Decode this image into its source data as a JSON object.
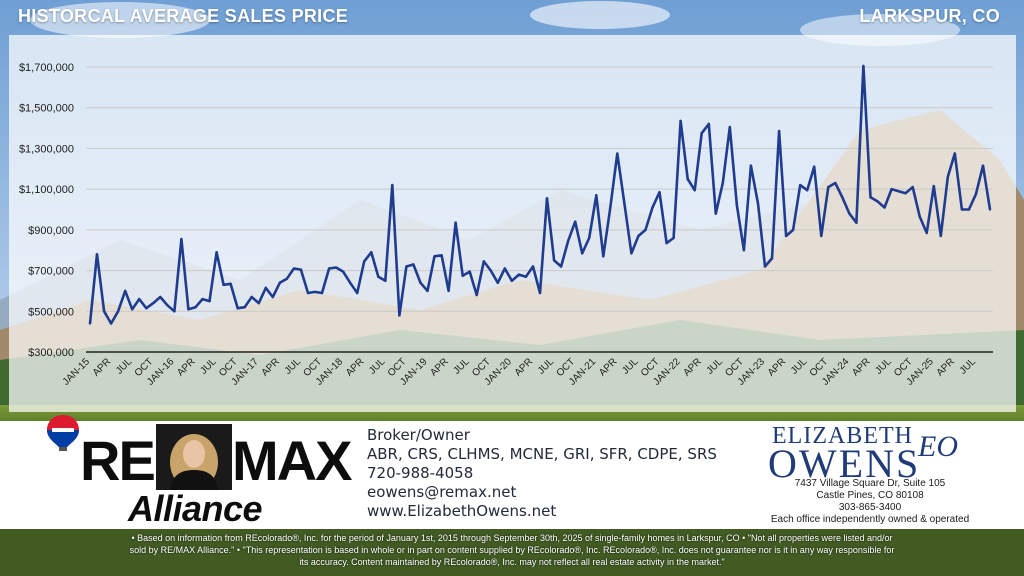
{
  "header": {
    "title": "HISTORCAL AVERAGE SALES PRICE",
    "location": "LARKSPUR, CO"
  },
  "chart_data": {
    "type": "line",
    "title": "HISTORCAL AVERAGE SALES PRICE",
    "xlabel": "",
    "ylabel": "",
    "ylim": [
      300000,
      1800000
    ],
    "yticks": [
      "$300,000",
      "$500,000",
      "$700,000",
      "$900,000",
      "$1,100,000",
      "$1,300,000",
      "$1,500,000",
      "$1,700,000"
    ],
    "grid": true,
    "series_color": "#1f3c8f",
    "categories": [
      "JAN-15",
      "",
      "",
      "APR",
      "",
      "",
      "JUL",
      "",
      "",
      "OCT",
      "",
      "",
      "JAN-16",
      "",
      "",
      "APR",
      "",
      "",
      "JUL",
      "",
      "",
      "OCT",
      "",
      "",
      "JAN-17",
      "",
      "",
      "APR",
      "",
      "",
      "JUL",
      "",
      "",
      "OCT",
      "",
      "",
      "JAN-18",
      "",
      "",
      "APR",
      "",
      "",
      "JUL",
      "",
      "",
      "OCT",
      "",
      "",
      "JAN-19",
      "",
      "",
      "APR",
      "",
      "",
      "JUL",
      "",
      "",
      "OCT",
      "",
      "",
      "JAN-20",
      "",
      "",
      "APR",
      "",
      "",
      "JUL",
      "",
      "",
      "OCT",
      "",
      "",
      "JAN-21",
      "",
      "",
      "APR",
      "",
      "",
      "JUL",
      "",
      "",
      "OCT",
      "",
      "",
      "JAN-22",
      "",
      "",
      "APR",
      "",
      "",
      "JUL",
      "",
      "",
      "OCT",
      "",
      "",
      "JAN-23",
      "",
      "",
      "APR",
      "",
      "",
      "JUL",
      "",
      "",
      "OCT",
      "",
      "",
      "JAN-24",
      "",
      "",
      "APR",
      "",
      "",
      "JUL",
      "",
      "",
      "OCT",
      "",
      "",
      "JAN-25",
      "",
      "",
      "APR",
      "",
      "",
      "JUL",
      "",
      ""
    ],
    "values": [
      440000,
      780000,
      500000,
      440000,
      500000,
      600000,
      510000,
      560000,
      515000,
      540000,
      570000,
      530000,
      500000,
      855000,
      510000,
      520000,
      560000,
      550000,
      790000,
      630000,
      635000,
      515000,
      520000,
      570000,
      540000,
      615000,
      570000,
      640000,
      660000,
      710000,
      705000,
      590000,
      595000,
      590000,
      710000,
      715000,
      695000,
      640000,
      590000,
      745000,
      790000,
      670000,
      650000,
      1120000,
      480000,
      720000,
      730000,
      640000,
      600000,
      770000,
      775000,
      600000,
      935000,
      675000,
      695000,
      580000,
      745000,
      700000,
      640000,
      710000,
      650000,
      680000,
      670000,
      720000,
      590000,
      1055000,
      750000,
      720000,
      845000,
      940000,
      785000,
      860000,
      1070000,
      770000,
      1010000,
      1275000,
      1030000,
      785000,
      870000,
      900000,
      1010000,
      1085000,
      835000,
      860000,
      1435000,
      1150000,
      1095000,
      1375000,
      1420000,
      980000,
      1130000,
      1405000,
      1020000,
      800000,
      1215000,
      1030000,
      720000,
      760000,
      1385000,
      870000,
      900000,
      1120000,
      1095000,
      1210000,
      870000,
      1110000,
      1130000,
      1060000,
      980000,
      935000,
      1705000,
      1060000,
      1040000,
      1010000,
      1100000,
      1090000,
      1080000,
      1110000,
      965000,
      885000,
      1115000,
      870000,
      1160000,
      1275000,
      1000000,
      1000000,
      1075000,
      1215000,
      1000000
    ]
  },
  "footer": {
    "logo_re": "RE",
    "logo_max": "MAX",
    "logo_alliance": "Alliance",
    "contact_lines": [
      "Broker/Owner",
      "ABR, CRS, CLHMS, MCNE, GRI, SFR, CDPE, SRS",
      "720-988-4058",
      "eowens@remax.net",
      "www.ElizabethOwens.net"
    ],
    "brand_first": "ELIZABETH",
    "brand_last": "OWENS",
    "brand_monogram": "EO",
    "office_lines": [
      "7437 Village Square Dr, Suite 105",
      "Castle Pines, CO 80108",
      "303-865-3400",
      "Each office independently owned & operated"
    ]
  },
  "disclaimer": {
    "lines": [
      "• Based on information from REcolorado®, Inc. for the period of January 1st, 2015 through September 30th, 2025 of single-family homes in Larkspur, CO • \"Not all properties were listed and/or",
      "sold by RE/MAX Alliance.\" • \"This representation is based in whole or in part on content supplied by REcolorado®, Inc. REcolorado®, Inc. does not guarantee nor is it in any way responsible for",
      "its accuracy. Content maintained by REcolorado®, Inc. may not reflect all real estate activity in the market.\""
    ]
  },
  "colors": {
    "line": "#1f3c8f",
    "brand_blue": "#1f3c78",
    "balloon_red": "#dc1c2e",
    "balloon_blue": "#003da5"
  }
}
